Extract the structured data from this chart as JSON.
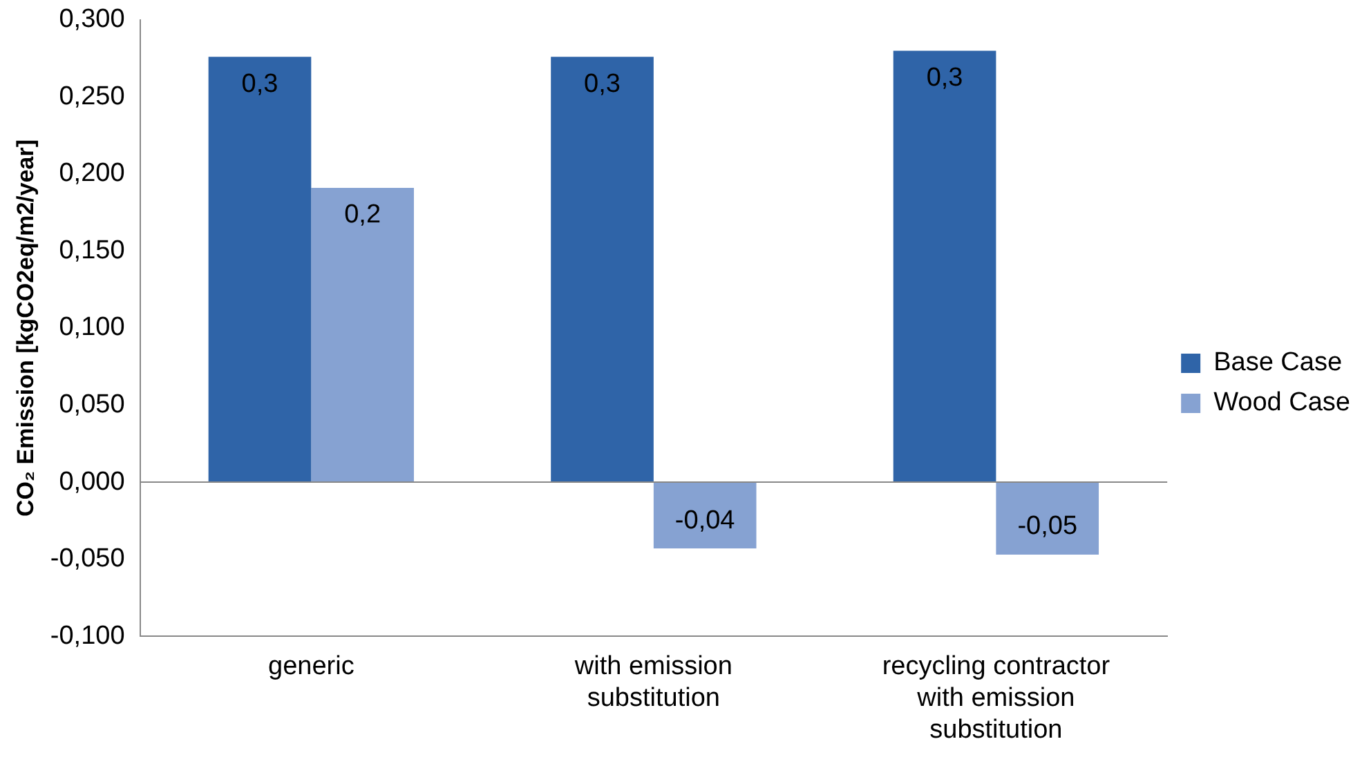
{
  "chart_data": {
    "type": "bar",
    "ylabel": "CO₂ Emission [kgCO2eq/m2/year]",
    "categories": [
      "generic",
      "with emission substitution",
      "recycling contractor with emission substitution"
    ],
    "series": [
      {
        "name": "Base Case",
        "color": "#2f64a8",
        "values": [
          0.276,
          0.276,
          0.28
        ],
        "value_labels": [
          "0,3",
          "0,3",
          "0,3"
        ]
      },
      {
        "name": "Wood Case",
        "color": "#86a2d2",
        "values": [
          0.191,
          -0.043,
          -0.047
        ],
        "value_labels": [
          "0,2",
          "-0,04",
          "-0,05"
        ]
      }
    ],
    "ylim": [
      -0.1,
      0.3
    ],
    "yticks": [
      {
        "value": -0.1,
        "label": "-0,100"
      },
      {
        "value": -0.05,
        "label": "-0,050"
      },
      {
        "value": 0,
        "label": "0,000"
      },
      {
        "value": 0.05,
        "label": "0,050"
      },
      {
        "value": 0.1,
        "label": "0,100"
      },
      {
        "value": 0.15,
        "label": "0,150"
      },
      {
        "value": 0.2,
        "label": "0,200"
      },
      {
        "value": 0.25,
        "label": "0,250"
      },
      {
        "value": 0.3,
        "label": "0,300"
      }
    ],
    "ref_lines": [
      {
        "axis": "y",
        "value": 0,
        "color": "#888888"
      }
    ],
    "grid": false,
    "legend": "right"
  }
}
